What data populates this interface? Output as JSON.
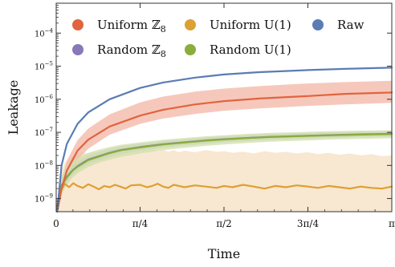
{
  "chart_data": {
    "type": "line",
    "title": "",
    "xlabel": "Time",
    "ylabel": "Leakage",
    "y_scale": "log",
    "xlim": [
      0,
      3.1416
    ],
    "ylim": [
      4e-10,
      0.0008
    ],
    "grid": false,
    "legend_position": "top",
    "x_ticks": [
      {
        "value": 0,
        "label": "0"
      },
      {
        "value": 0.7854,
        "label": "π/4"
      },
      {
        "value": 1.5708,
        "label": "π/2"
      },
      {
        "value": 2.3562,
        "label": "3π/4"
      },
      {
        "value": 3.1416,
        "label": "π"
      }
    ],
    "y_ticks": [
      {
        "value": 1e-09,
        "mantissa": "10",
        "exponent": "−9"
      },
      {
        "value": 1e-08,
        "mantissa": "10",
        "exponent": "−8"
      },
      {
        "value": 1e-07,
        "mantissa": "10",
        "exponent": "−7"
      },
      {
        "value": 1e-06,
        "mantissa": "10",
        "exponent": "−6"
      },
      {
        "value": 1e-05,
        "mantissa": "10",
        "exponent": "−5"
      },
      {
        "value": 0.0001,
        "mantissa": "10",
        "exponent": "−4"
      }
    ],
    "series": [
      {
        "name": "Raw",
        "color": "#5b7cb4",
        "x": [
          0.01,
          0.05,
          0.1,
          0.2,
          0.3,
          0.5,
          0.7854,
          1.0,
          1.3,
          1.5708,
          1.9,
          2.3562,
          2.7,
          3.1416
        ],
        "y": [
          4e-10,
          1e-08,
          4.5e-08,
          1.8e-07,
          4e-07,
          1e-06,
          2.2e-06,
          3.2e-06,
          4.5e-06,
          5.6e-06,
          6.6e-06,
          7.6e-06,
          8.3e-06,
          9e-06
        ]
      },
      {
        "name": "Uniform ℤ8",
        "color": "#e0643f",
        "band_color": "#f3b5a4",
        "x": [
          0.01,
          0.05,
          0.1,
          0.2,
          0.3,
          0.5,
          0.7854,
          1.0,
          1.3,
          1.5708,
          1.9,
          2.3562,
          2.7,
          3.1416
        ],
        "y": [
          4e-10,
          2e-09,
          7e-09,
          2.8e-08,
          6e-08,
          1.5e-07,
          3.2e-07,
          4.8e-07,
          7e-07,
          8.8e-07,
          1.05e-06,
          1.25e-06,
          1.45e-06,
          1.6e-06
        ],
        "lower": [
          4e-10,
          1.2e-09,
          4e-09,
          1.5e-08,
          3.2e-08,
          8.5e-08,
          1.8e-07,
          2.6e-07,
          3.6e-07,
          4.5e-07,
          5.3e-07,
          6.3e-07,
          7e-07,
          7.8e-07
        ],
        "upper": [
          4e-10,
          3.5e-09,
          1.4e-08,
          5.8e-08,
          1.3e-07,
          3.5e-07,
          8e-07,
          1.2e-06,
          1.7e-06,
          2.1e-06,
          2.5e-06,
          3e-06,
          3.3e-06,
          3.6e-06
        ]
      },
      {
        "name": "Uniform U(1)",
        "color": "#dda032",
        "band_color": "#f6dfc2",
        "x": [
          0.01,
          0.04,
          0.08,
          0.12,
          0.16,
          0.2,
          0.25,
          0.3,
          0.35,
          0.4,
          0.45,
          0.5,
          0.55,
          0.6,
          0.65,
          0.7,
          0.7854,
          0.85,
          0.9,
          0.95,
          1.0,
          1.05,
          1.1,
          1.15,
          1.2,
          1.3,
          1.4,
          1.5,
          1.5708,
          1.65,
          1.75,
          1.85,
          1.95,
          2.05,
          2.15,
          2.25,
          2.3562,
          2.45,
          2.55,
          2.65,
          2.75,
          2.85,
          2.95,
          3.05,
          3.1416
        ],
        "y": [
          6e-10,
          1.6e-09,
          2.8e-09,
          2.2e-09,
          2.9e-09,
          2.4e-09,
          2.1e-09,
          2.7e-09,
          2.3e-09,
          1.9e-09,
          2.4e-09,
          2.2e-09,
          2.6e-09,
          2.3e-09,
          2e-09,
          2.5e-09,
          2.6e-09,
          2.2e-09,
          2.4e-09,
          2.8e-09,
          2.3e-09,
          2.1e-09,
          2.6e-09,
          2.4e-09,
          2.2e-09,
          2.5e-09,
          2.3e-09,
          2.1e-09,
          2.4e-09,
          2.2e-09,
          2.6e-09,
          2.3e-09,
          2e-09,
          2.4e-09,
          2.2e-09,
          2.5e-09,
          2.3e-09,
          2.1e-09,
          2.4e-09,
          2.2e-09,
          2e-09,
          2.3e-09,
          2.1e-09,
          2e-09,
          2.3e-09
        ],
        "lower": [
          4e-10,
          4e-10,
          4e-10,
          4e-10,
          4e-10,
          4e-10,
          4e-10,
          4e-10,
          4e-10,
          4e-10,
          4e-10,
          4e-10,
          4e-10,
          4e-10,
          4e-10,
          4e-10,
          4e-10,
          4e-10,
          4e-10,
          4e-10,
          4e-10,
          4e-10,
          4e-10,
          4e-10,
          4e-10,
          4e-10,
          4e-10,
          4e-10,
          4e-10,
          4e-10,
          4e-10,
          4e-10,
          4e-10,
          4e-10,
          4e-10,
          4e-10,
          4e-10,
          4e-10,
          4e-10,
          4e-10,
          4e-10,
          4e-10,
          4e-10,
          4e-10,
          4e-10
        ],
        "upper": [
          8e-10,
          5e-09,
          1.2e-08,
          1.6e-08,
          2e-08,
          2.1e-08,
          2.5e-08,
          2.2e-08,
          2.6e-08,
          2.4e-08,
          2.8e-08,
          2.6e-08,
          3e-08,
          2.7e-08,
          3.2e-08,
          2.9e-08,
          3.3e-08,
          2.8e-08,
          3.1e-08,
          2.7e-08,
          3e-08,
          2.6e-08,
          2.9e-08,
          2.5e-08,
          2.8e-08,
          2.5e-08,
          2.9e-08,
          2.6e-08,
          2.7e-08,
          2.4e-08,
          2.6e-08,
          2.3e-08,
          2.7e-08,
          2.4e-08,
          2.6e-08,
          2.3e-08,
          2.5e-08,
          2.2e-08,
          2.4e-08,
          2.1e-08,
          2.3e-08,
          2e-08,
          2.2e-08,
          1.9e-08,
          2e-08
        ]
      },
      {
        "name": "Random ℤ8",
        "color": "#8878b8",
        "band_color": "#c9c0e0",
        "x": [
          0.01,
          0.05,
          0.1,
          0.15,
          0.2,
          0.25,
          0.3,
          0.4,
          0.5,
          0.6,
          0.7854,
          0.9,
          1.0,
          1.2,
          1.4,
          1.5708,
          1.8,
          2.0,
          2.3562,
          2.6,
          2.9,
          3.1416
        ],
        "y": [
          5e-10,
          2.5e-09,
          4.5e-09,
          7e-09,
          9.5e-09,
          1.2e-08,
          1.5e-08,
          1.9e-08,
          2.4e-08,
          2.9e-08,
          3.6e-08,
          4e-08,
          4.4e-08,
          5e-08,
          5.7e-08,
          6.2e-08,
          6.8e-08,
          7.3e-08,
          7.9e-08,
          8.3e-08,
          8.7e-08,
          9e-08
        ],
        "lower": [
          4e-10,
          1.6e-09,
          3e-09,
          5e-09,
          7e-09,
          8.5e-09,
          1.1e-08,
          1.4e-08,
          1.8e-08,
          2.2e-08,
          2.8e-08,
          3.1e-08,
          3.4e-08,
          4e-08,
          4.5e-08,
          5e-08,
          5.5e-08,
          6e-08,
          6.5e-08,
          6.9e-08,
          7.2e-08,
          7.5e-08
        ],
        "upper": [
          8e-10,
          3.8e-09,
          6.5e-09,
          1e-08,
          1.3e-08,
          1.6e-08,
          2e-08,
          2.6e-08,
          3.2e-08,
          3.8e-08,
          4.6e-08,
          5e-08,
          5.5e-08,
          6.2e-08,
          7e-08,
          7.6e-08,
          8.3e-08,
          8.9e-08,
          9.6e-08,
          1.01e-07,
          1.05e-07,
          1.08e-07
        ]
      },
      {
        "name": "Random U(1)",
        "color": "#8aad3c",
        "band_color": "#cfe0a8",
        "x": [
          0.01,
          0.05,
          0.1,
          0.15,
          0.2,
          0.25,
          0.3,
          0.4,
          0.5,
          0.6,
          0.7854,
          0.9,
          1.0,
          1.2,
          1.4,
          1.5708,
          1.8,
          2.0,
          2.3562,
          2.6,
          2.9,
          3.1416
        ],
        "y": [
          5e-10,
          2.4e-09,
          4.3e-09,
          6.8e-09,
          9.2e-09,
          1.15e-08,
          1.45e-08,
          1.85e-08,
          2.35e-08,
          2.85e-08,
          3.5e-08,
          3.9e-08,
          4.3e-08,
          4.9e-08,
          5.6e-08,
          6.1e-08,
          6.7e-08,
          7.2e-08,
          7.8e-08,
          8.2e-08,
          8.6e-08,
          8.9e-08
        ],
        "lower": [
          4e-10,
          1.4e-09,
          2.6e-09,
          4.2e-09,
          5.8e-09,
          7.2e-09,
          9e-09,
          1.2e-08,
          1.5e-08,
          1.8e-08,
          2.3e-08,
          2.6e-08,
          2.9e-08,
          3.4e-08,
          3.9e-08,
          4.3e-08,
          4.8e-08,
          5.2e-08,
          5.7e-08,
          6.1e-08,
          6.4e-08,
          6.7e-08
        ],
        "upper": [
          9e-10,
          5e-09,
          9e-09,
          1.3e-08,
          1.7e-08,
          2e-08,
          2.4e-08,
          3e-08,
          3.6e-08,
          4.2e-08,
          5e-08,
          5.5e-08,
          6e-08,
          6.8e-08,
          7.6e-08,
          8.2e-08,
          9e-08,
          9.6e-08,
          1.04e-07,
          1.09e-07,
          1.13e-07,
          1.16e-07
        ]
      }
    ],
    "legend": [
      {
        "label": "Uniform ℤ",
        "sub": "8",
        "series": "Uniform ℤ8"
      },
      {
        "label": "Uniform U(1)",
        "sub": "",
        "series": "Uniform U(1)"
      },
      {
        "label": "Raw",
        "sub": "",
        "series": "Raw"
      },
      {
        "label": "Random ℤ",
        "sub": "8",
        "series": "Random ℤ8"
      },
      {
        "label": "Random U(1)",
        "sub": "",
        "series": "Random U(1)"
      }
    ]
  }
}
